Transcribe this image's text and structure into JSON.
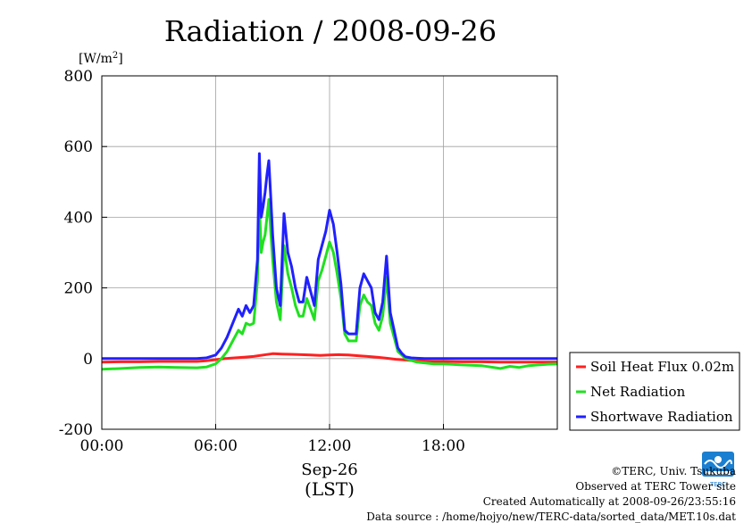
{
  "chart_data": {
    "type": "line",
    "title": "Radiation / 2008-09-26",
    "ylabel": "[W/m",
    "ylabel_sup": "2",
    "ylabel_close": "]",
    "ylim": [
      -200,
      800
    ],
    "yticks": [
      -200,
      0,
      200,
      400,
      600,
      800
    ],
    "xlim": [
      0,
      24
    ],
    "xticks": [
      {
        "value": 0,
        "label": "00:00"
      },
      {
        "value": 6,
        "label": "06:00"
      },
      {
        "value": 12,
        "label": "12:00"
      },
      {
        "value": 18,
        "label": "18:00"
      }
    ],
    "xlabel_date": "Sep-26",
    "xlabel_tz": "(LST)",
    "grid": true,
    "legend_position": "right",
    "series": [
      {
        "name": "Soil Heat Flux 0.02m",
        "color": "#ff2020",
        "x": [
          0,
          1,
          2,
          3,
          4,
          5,
          5.5,
          6,
          6.5,
          7,
          7.5,
          8,
          8.5,
          9,
          9.5,
          10,
          10.5,
          11,
          11.5,
          12,
          12.5,
          13,
          13.5,
          14,
          14.5,
          15,
          15.5,
          16,
          16.5,
          17,
          17.5,
          18,
          19,
          20,
          21,
          22,
          23,
          24
        ],
        "y": [
          -10,
          -9,
          -9,
          -8,
          -8,
          -8,
          -6,
          -3,
          0,
          2,
          4,
          6,
          10,
          14,
          13,
          12,
          11,
          10,
          9,
          10,
          11,
          10,
          8,
          6,
          4,
          1,
          -2,
          -4,
          -6,
          -7,
          -8,
          -8,
          -9,
          -9,
          -10,
          -10,
          -10,
          -10
        ]
      },
      {
        "name": "Net Radiation",
        "color": "#20e020",
        "x": [
          0,
          1,
          2,
          3,
          4,
          5,
          5.5,
          6,
          6.3,
          6.6,
          6.9,
          7.2,
          7.4,
          7.6,
          7.8,
          8.0,
          8.2,
          8.3,
          8.4,
          8.5,
          8.6,
          8.7,
          8.8,
          8.9,
          9.0,
          9.2,
          9.4,
          9.6,
          9.8,
          10.0,
          10.2,
          10.4,
          10.6,
          10.8,
          11.0,
          11.2,
          11.4,
          11.6,
          11.8,
          12.0,
          12.2,
          12.4,
          12.6,
          12.8,
          13.0,
          13.2,
          13.4,
          13.6,
          13.8,
          14.0,
          14.2,
          14.4,
          14.6,
          14.8,
          15.0,
          15.2,
          15.4,
          15.6,
          15.8,
          16.0,
          16.3,
          16.6,
          17,
          17.5,
          18,
          19,
          20,
          21,
          21.5,
          22,
          22.5,
          23,
          23.5,
          24
        ],
        "y": [
          -30,
          -28,
          -25,
          -24,
          -25,
          -26,
          -24,
          -15,
          0,
          20,
          50,
          80,
          70,
          100,
          95,
          100,
          220,
          440,
          300,
          330,
          350,
          400,
          450,
          360,
          280,
          160,
          110,
          320,
          240,
          200,
          150,
          120,
          120,
          170,
          140,
          110,
          220,
          250,
          290,
          330,
          300,
          240,
          170,
          70,
          50,
          50,
          50,
          150,
          180,
          160,
          150,
          100,
          80,
          120,
          230,
          100,
          60,
          20,
          10,
          0,
          -5,
          -10,
          -12,
          -15,
          -15,
          -18,
          -20,
          -28,
          -22,
          -25,
          -20,
          -18,
          -16,
          -15
        ]
      },
      {
        "name": "Shortwave Radiation",
        "color": "#2020ff",
        "x": [
          0,
          1,
          2,
          3,
          4,
          5,
          5.5,
          6,
          6.3,
          6.6,
          6.9,
          7.2,
          7.4,
          7.6,
          7.8,
          8.0,
          8.2,
          8.3,
          8.4,
          8.5,
          8.6,
          8.7,
          8.8,
          8.9,
          9.0,
          9.2,
          9.4,
          9.6,
          9.8,
          10.0,
          10.2,
          10.4,
          10.6,
          10.8,
          11.0,
          11.2,
          11.4,
          11.6,
          11.8,
          12.0,
          12.2,
          12.4,
          12.6,
          12.8,
          13.0,
          13.2,
          13.4,
          13.6,
          13.8,
          14.0,
          14.2,
          14.4,
          14.6,
          14.8,
          15.0,
          15.2,
          15.4,
          15.6,
          15.8,
          16.0,
          16.3,
          16.6,
          17,
          17.5,
          18,
          19,
          20,
          21,
          22,
          23,
          24
        ],
        "y": [
          0,
          0,
          0,
          0,
          0,
          0,
          2,
          10,
          30,
          60,
          100,
          140,
          120,
          150,
          130,
          150,
          280,
          580,
          400,
          430,
          470,
          520,
          560,
          460,
          350,
          200,
          150,
          410,
          300,
          260,
          200,
          160,
          160,
          230,
          190,
          150,
          280,
          320,
          360,
          420,
          380,
          300,
          210,
          80,
          70,
          70,
          70,
          200,
          240,
          220,
          200,
          130,
          110,
          160,
          290,
          130,
          80,
          30,
          15,
          5,
          2,
          1,
          0,
          0,
          0,
          0,
          0,
          0,
          0,
          0,
          0
        ]
      }
    ]
  },
  "footer": {
    "copyright": "©TERC, Univ. Tsukuba",
    "observed": "Observed at TERC Tower site",
    "created": "Created Automatically at 2008-09-26/23:55:16",
    "source": "Data source : /home/hojyo/new/TERC-data/sorted_data/MET.10s.dat"
  },
  "logo": {
    "text": "TERC",
    "color": "#1a7fd0"
  }
}
